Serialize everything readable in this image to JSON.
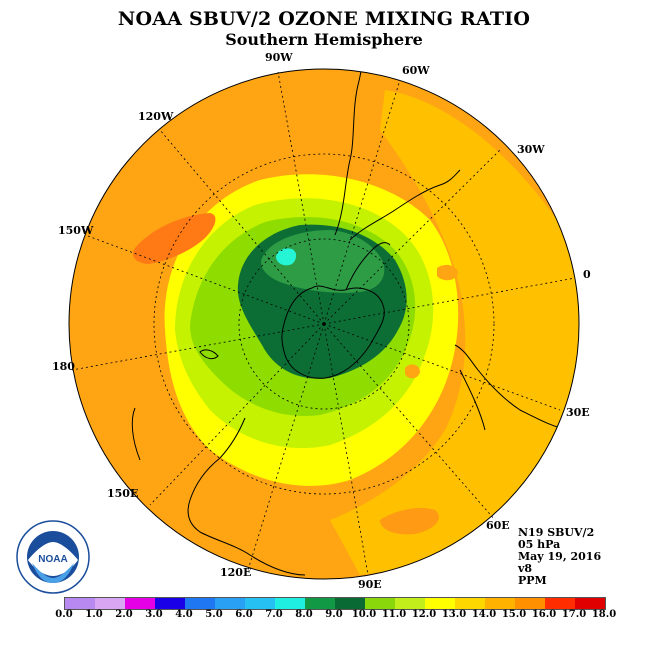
{
  "title": "NOAA SBUV/2 OZONE MIXING RATIO",
  "subtitle": "Southern Hemisphere",
  "longitude_labels": {
    "lon_90w": "90W",
    "lon_60w": "60W",
    "lon_120w": "120W",
    "lon_30w": "30W",
    "lon_150w": "150W",
    "lon_0": "0",
    "lon_180": "180",
    "lon_30e": "30E",
    "lon_150e": "150E",
    "lon_60e": "60E",
    "lon_120e": "120E",
    "lon_90e": "90E"
  },
  "info": {
    "instrument": "N19 SBUV/2",
    "pressure": "05 hPa",
    "date": "May 19, 2016",
    "version": "v8",
    "units": "PPM"
  },
  "colorbar": {
    "ticks": [
      "0.0",
      "1.0",
      "2.0",
      "3.0",
      "4.0",
      "5.0",
      "6.0",
      "7.0",
      "8.0",
      "9.0",
      "10.0",
      "11.0",
      "12.0",
      "13.0",
      "14.0",
      "15.0",
      "16.0",
      "17.0",
      "18.0"
    ],
    "colors": [
      "#b989f2",
      "#d9a6f3",
      "#e600e6",
      "#1a00e6",
      "#1f77f2",
      "#2aa0f5",
      "#27c0f3",
      "#1eefe0",
      "#129946",
      "#0a6a33",
      "#8ad80b",
      "#c2ef1b",
      "#ffff00",
      "#ffd700",
      "#ffb300",
      "#ff9000",
      "#ff2d00",
      "#e00000",
      "#8b5a3c"
    ]
  },
  "map_colors": {
    "background": "#ffc000",
    "outer": "#ffa514",
    "yellow": "#ffff00",
    "lightgreen": "#c4f200",
    "green": "#8fdc00",
    "darkgreen": "#0c6e35",
    "medgreen": "#2e9b45",
    "cyan": "#25f5d5",
    "redorange": "#ff7a14"
  },
  "logo_text": "NOAA"
}
